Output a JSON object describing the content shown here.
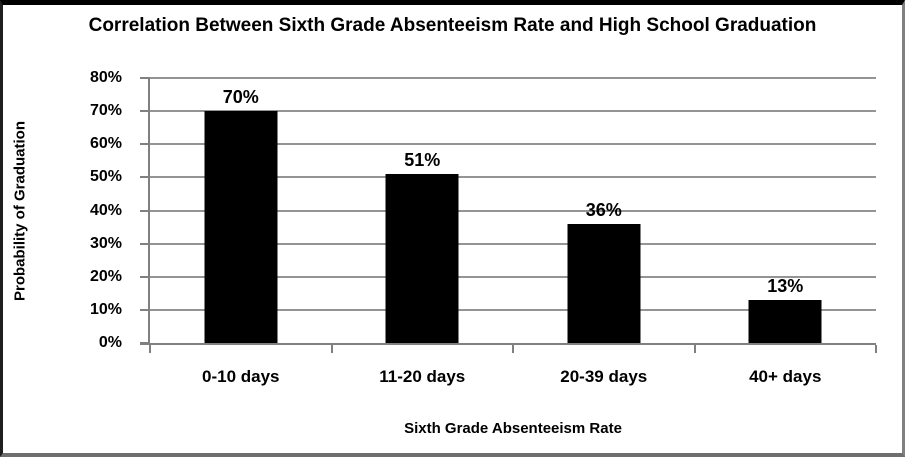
{
  "chart_data": {
    "type": "bar",
    "title": "Correlation Between Sixth Grade Absenteeism Rate and High School Graduation",
    "xlabel": "Sixth Grade Absenteeism Rate",
    "ylabel": "Probability of Graduation",
    "categories": [
      "0-10 days",
      "11-20 days",
      "20-39 days",
      "40+ days"
    ],
    "values": [
      70,
      51,
      36,
      13
    ],
    "value_labels": [
      "70%",
      "51%",
      "36%",
      "13%"
    ],
    "ylim": [
      0,
      80
    ],
    "ytick_step": 10,
    "ytick_labels": [
      "0%",
      "10%",
      "20%",
      "30%",
      "40%",
      "50%",
      "60%",
      "70%",
      "80%"
    ],
    "grid": true,
    "legend": false,
    "layout_hints": {
      "bar_color": "#000000",
      "gridline_color": "#949494",
      "axis_color": "#808080",
      "text_color": "#000000",
      "background_color": "#ffffff",
      "frame_border_color": "#000000"
    }
  }
}
